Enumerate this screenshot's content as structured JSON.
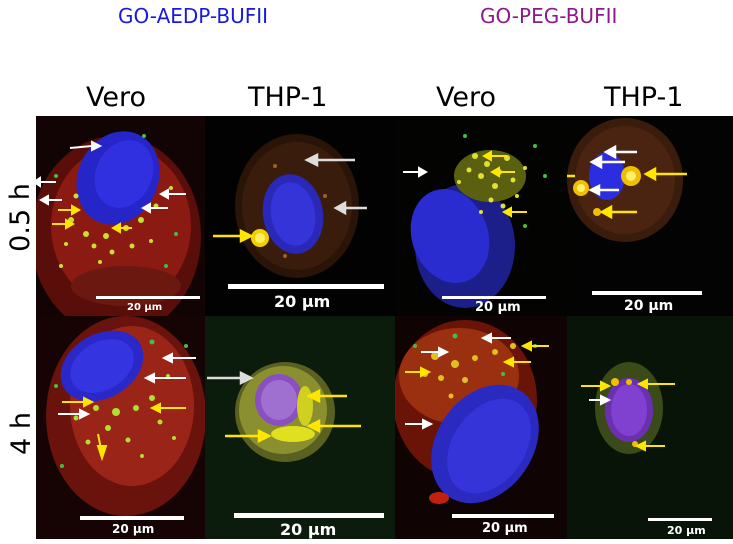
{
  "titles": {
    "left": "GO-AEDP-BUFII",
    "right": "GO-PEG-BUFII",
    "left_color": "#1a1adb",
    "right_color": "#8b1a8b"
  },
  "columns": [
    "Vero",
    "THP-1",
    "Vero",
    "THP-1"
  ],
  "rows": [
    "0.5 h",
    "4 h"
  ],
  "scale_label": "20 µm",
  "arrow_colors": {
    "white": "#ffffff",
    "yellow": "#ffe600"
  },
  "channel_colors": {
    "nucleus": "#2a2ae0",
    "membrane": "#c8201a",
    "particles": "#e8e020",
    "green": "#4cd040"
  }
}
